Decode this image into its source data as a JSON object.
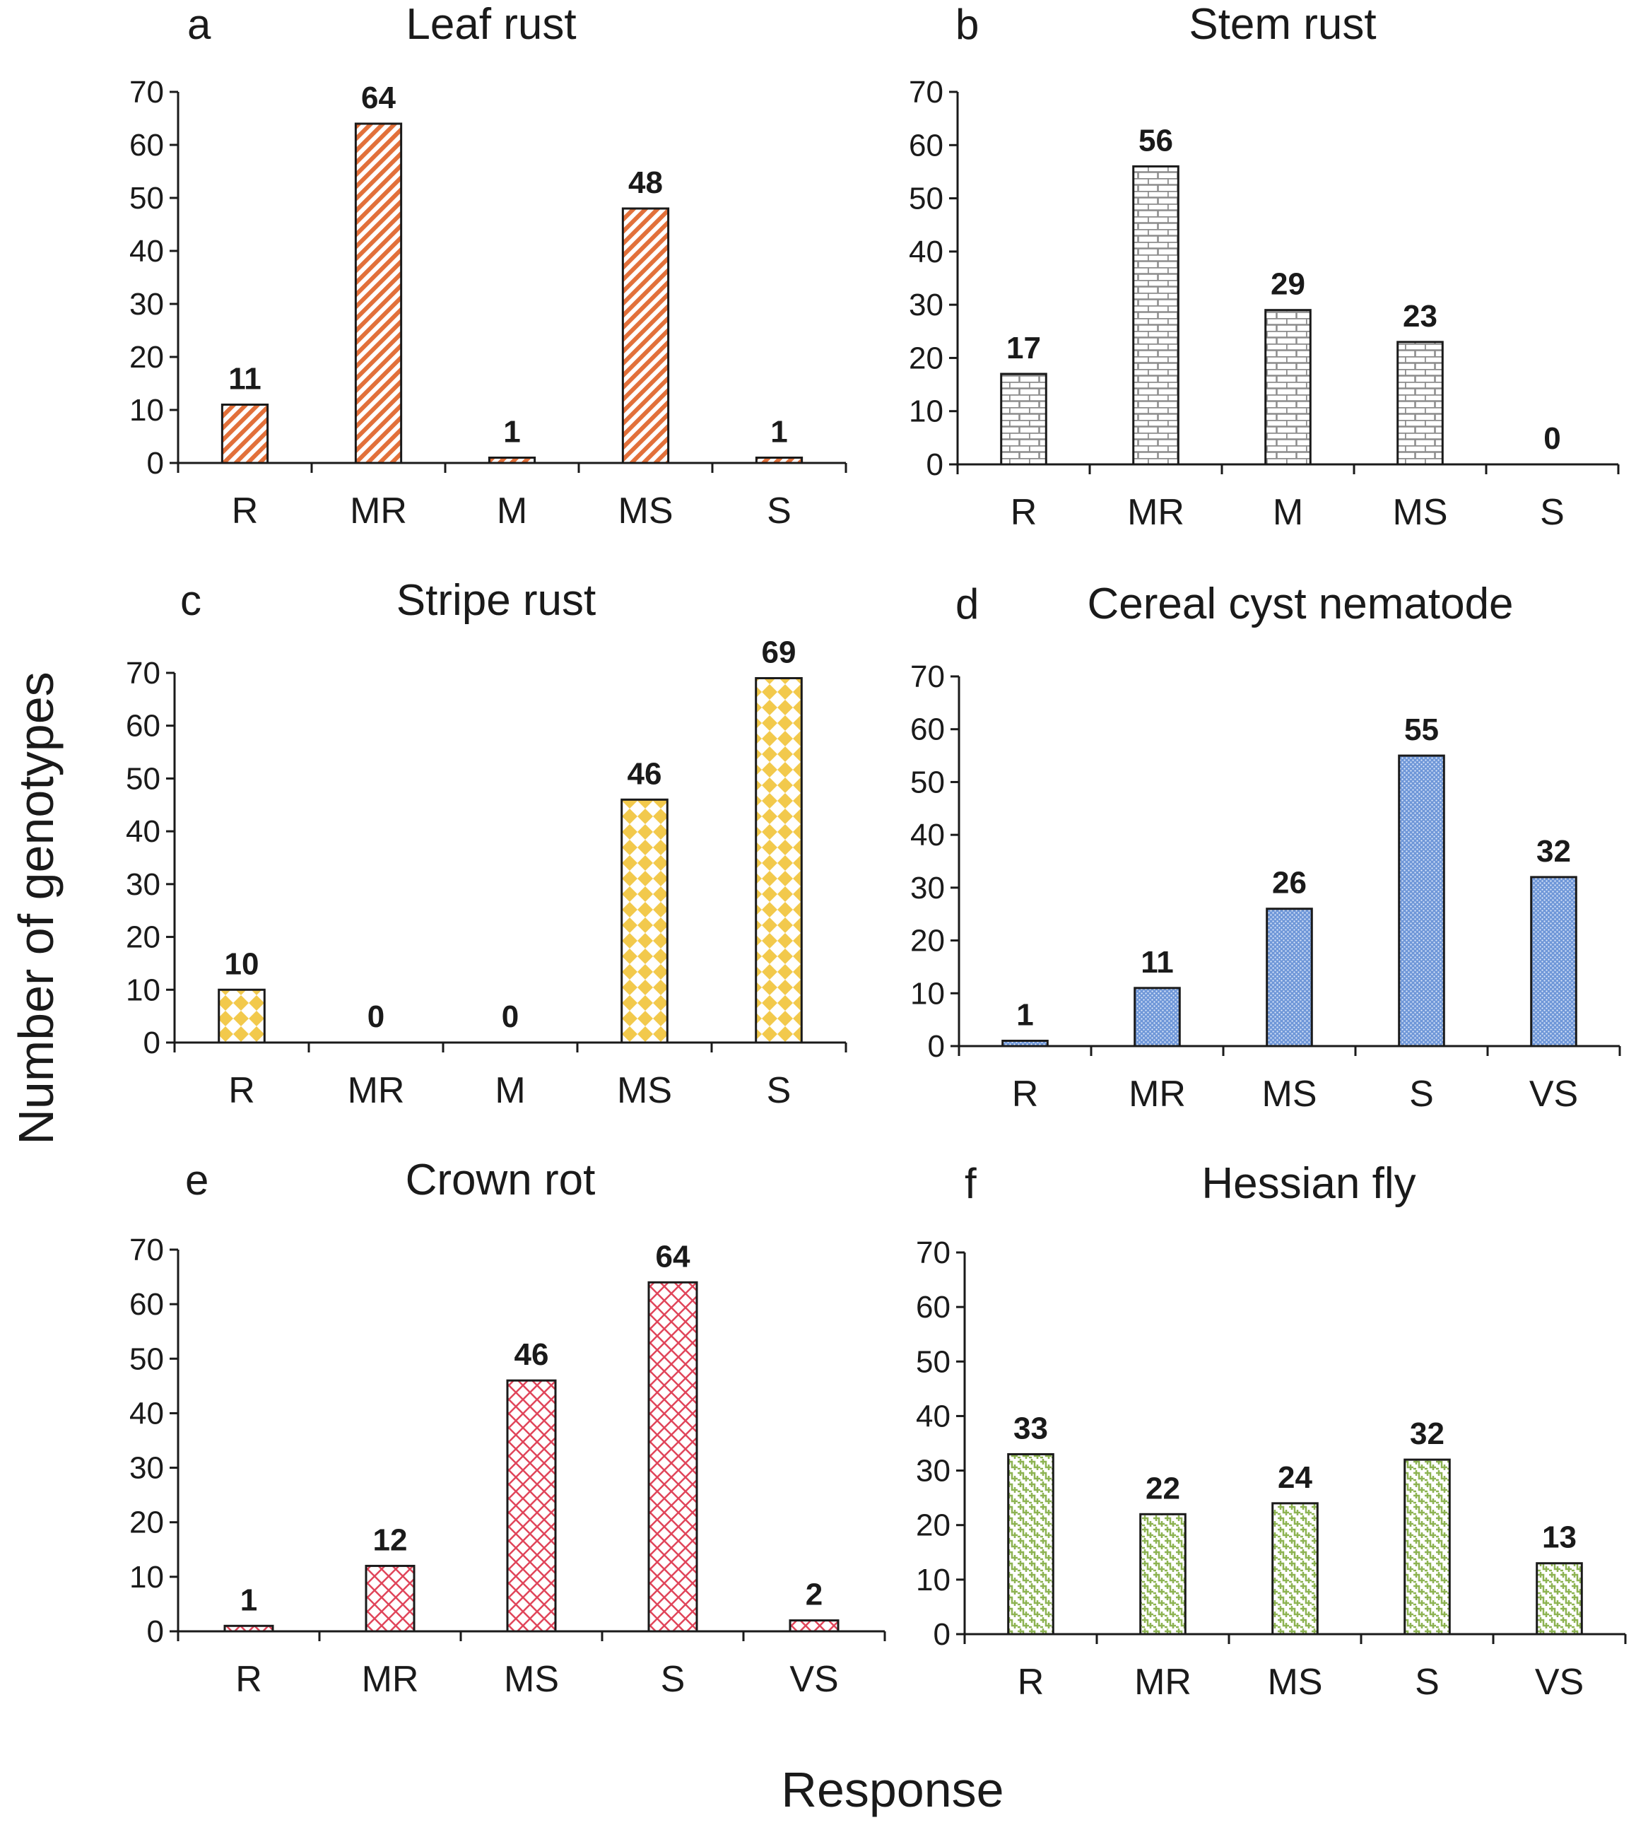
{
  "figure": {
    "ylabel": "Number of genotypes",
    "xlabel": "Response"
  },
  "chart_data": [
    {
      "type": "bar",
      "panel": "a",
      "title": "Leaf rust",
      "categories": [
        "R",
        "MR",
        "M",
        "MS",
        "S"
      ],
      "values": [
        11,
        64,
        1,
        48,
        1
      ],
      "ylim": [
        0,
        70
      ],
      "yticks": [
        0,
        10,
        20,
        30,
        40,
        50,
        60,
        70
      ],
      "fill_color": "#E2703A",
      "pattern": "diagonal-stripes",
      "grid": false
    },
    {
      "type": "bar",
      "panel": "b",
      "title": "Stem rust",
      "categories": [
        "R",
        "MR",
        "M",
        "MS",
        "S"
      ],
      "values": [
        17,
        56,
        29,
        23,
        0
      ],
      "ylim": [
        0,
        70
      ],
      "yticks": [
        0,
        10,
        20,
        30,
        40,
        50,
        60,
        70
      ],
      "fill_color": "#8C8C8C",
      "pattern": "bricks",
      "grid": false
    },
    {
      "type": "bar",
      "panel": "c",
      "title": "Stripe rust",
      "categories": [
        "R",
        "MR",
        "M",
        "MS",
        "S"
      ],
      "values": [
        10,
        0,
        0,
        46,
        69
      ],
      "ylim": [
        0,
        70
      ],
      "yticks": [
        0,
        10,
        20,
        30,
        40,
        50,
        60,
        70
      ],
      "fill_color": "#F2C94C",
      "pattern": "diamonds",
      "grid": false
    },
    {
      "type": "bar",
      "panel": "d",
      "title": "Cereal cyst nematode",
      "categories": [
        "R",
        "MR",
        "MS",
        "S",
        "VS"
      ],
      "values": [
        1,
        11,
        26,
        55,
        32
      ],
      "ylim": [
        0,
        70
      ],
      "yticks": [
        0,
        10,
        20,
        30,
        40,
        50,
        60,
        70
      ],
      "fill_color": "#6F97D8",
      "pattern": "dots",
      "grid": false
    },
    {
      "type": "bar",
      "panel": "e",
      "title": "Crown rot",
      "categories": [
        "R",
        "MR",
        "MS",
        "S",
        "VS"
      ],
      "values": [
        1,
        12,
        46,
        64,
        2
      ],
      "ylim": [
        0,
        70
      ],
      "yticks": [
        0,
        10,
        20,
        30,
        40,
        50,
        60,
        70
      ],
      "fill_color": "#E0455A",
      "pattern": "crosshatch",
      "grid": false
    },
    {
      "type": "bar",
      "panel": "f",
      "title": "Hessian fly",
      "categories": [
        "R",
        "MR",
        "MS",
        "S",
        "VS"
      ],
      "values": [
        33,
        22,
        24,
        32,
        13
      ],
      "ylim": [
        0,
        70
      ],
      "yticks": [
        0,
        10,
        20,
        30,
        40,
        50,
        60,
        70
      ],
      "fill_color": "#8DB352",
      "pattern": "weave",
      "grid": false
    }
  ]
}
